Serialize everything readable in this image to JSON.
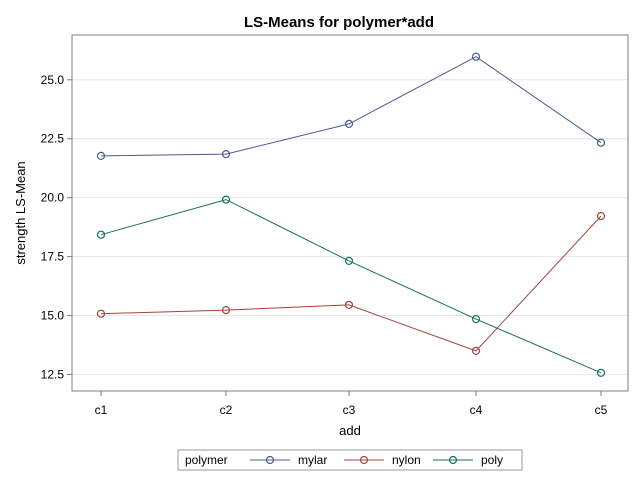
{
  "chart_data": {
    "type": "line",
    "title": "LS-Means for polymer*add",
    "xlabel": "add",
    "ylabel": "strength LS-Mean",
    "categories": [
      "c1",
      "c2",
      "c3",
      "c4",
      "c5"
    ],
    "ylim": [
      11.8,
      26.9
    ],
    "yticks": [
      12.5,
      15.0,
      17.5,
      20.0,
      22.5,
      25.0
    ],
    "grid": "horizontal",
    "legend": {
      "title": "polymer",
      "placement": "bottom"
    },
    "series": [
      {
        "name": "mylar",
        "color": "#4a5a8c",
        "values": [
          21.77,
          21.85,
          23.13,
          25.98,
          22.33
        ]
      },
      {
        "name": "nylon",
        "color": "#a0463c",
        "values": [
          15.08,
          15.23,
          15.45,
          13.5,
          19.22
        ]
      },
      {
        "name": "poly",
        "color": "#1a6e5a",
        "values": [
          18.43,
          19.92,
          17.32,
          14.85,
          12.57
        ]
      }
    ]
  }
}
